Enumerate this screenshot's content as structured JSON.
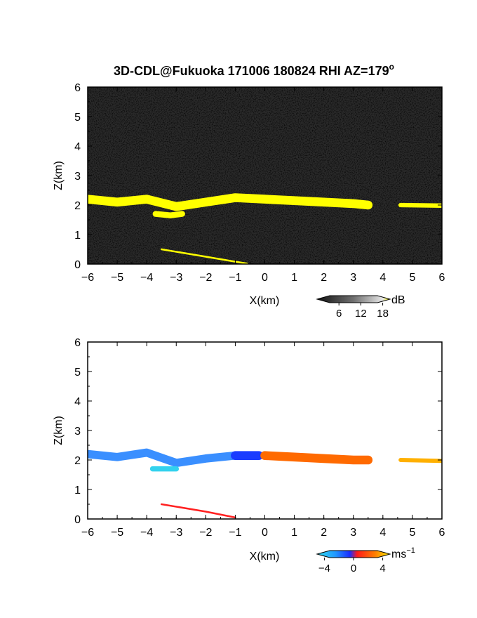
{
  "chart_data": [
    {
      "type": "heatmap",
      "title": "3D-CDL@Fukuoka 171006 180824 RHI AZ=179",
      "title_superscript": "o",
      "xlabel": "X(km)",
      "ylabel": "Z(km)",
      "xlim": [
        -6,
        6
      ],
      "ylim": [
        0,
        6
      ],
      "xticks": [
        -6,
        -5,
        -4,
        -3,
        -2,
        -1,
        0,
        1,
        2,
        3,
        4,
        5,
        6
      ],
      "yticks": [
        0,
        1,
        2,
        3,
        4,
        5,
        6
      ],
      "background": "dark gray noise",
      "colorbar": {
        "label": "dB",
        "ticks": [
          6,
          12,
          18
        ],
        "range": [
          0,
          20
        ]
      },
      "features": [
        {
          "name": "cloud layer",
          "x": [
            -6.0,
            -5.0,
            -4.0,
            -3.0,
            -2.0,
            -1.0,
            0.0,
            1.0,
            2.0,
            3.0,
            3.5
          ],
          "z": [
            2.2,
            2.1,
            2.2,
            1.95,
            2.1,
            2.25,
            2.2,
            2.15,
            2.1,
            2.05,
            2.0
          ],
          "thickness_km": 0.3,
          "color": "#ffff00"
        },
        {
          "name": "lower segment",
          "x": [
            -3.7,
            -3.2,
            -2.8
          ],
          "z": [
            1.7,
            1.65,
            1.7
          ],
          "thickness_km": 0.2,
          "color": "#ffff00"
        },
        {
          "name": "right segment",
          "x": [
            4.6,
            6.0
          ],
          "z": [
            2.0,
            1.98
          ],
          "thickness_km": 0.15,
          "color": "#ffff00"
        },
        {
          "name": "ground echo",
          "x": [
            -3.5,
            -2.0,
            -1.0,
            -0.6
          ],
          "z": [
            0.5,
            0.25,
            0.08,
            0.02
          ],
          "thickness_km": 0.06,
          "color": "#ffff00"
        }
      ]
    },
    {
      "type": "heatmap",
      "xlabel": "X(km)",
      "ylabel": "Z(km)",
      "xlim": [
        -6,
        6
      ],
      "ylim": [
        0,
        6
      ],
      "xticks": [
        -6,
        -5,
        -4,
        -3,
        -2,
        -1,
        0,
        1,
        2,
        3,
        4,
        5,
        6
      ],
      "yticks": [
        0,
        1,
        2,
        3,
        4,
        5,
        6
      ],
      "background": "white",
      "colorbar": {
        "label": "ms",
        "label_superscript": "−1",
        "ticks": [
          -4,
          0,
          4
        ],
        "tick_labels": [
          "−4",
          "0",
          "4"
        ],
        "range": [
          -5,
          5
        ]
      },
      "features": [
        {
          "name": "cloud layer west",
          "x": [
            -6.0,
            -5.0,
            -4.0,
            -3.0,
            -2.0,
            -1.0,
            -0.2
          ],
          "z": [
            2.2,
            2.1,
            2.25,
            1.9,
            2.05,
            2.15,
            2.15
          ],
          "thickness_km": 0.28,
          "velocity_ms": -2.8,
          "color": "#3a8fff"
        },
        {
          "name": "cloud layer center",
          "x": [
            -1.0,
            -0.2
          ],
          "z": [
            2.15,
            2.15
          ],
          "thickness_km": 0.3,
          "velocity_ms": -1.2,
          "color": "#1a3cff"
        },
        {
          "name": "cloud layer east",
          "x": [
            0.0,
            1.0,
            2.0,
            3.0,
            3.5
          ],
          "z": [
            2.15,
            2.1,
            2.05,
            2.0,
            2.0
          ],
          "thickness_km": 0.3,
          "velocity_ms": 2.2,
          "color": "#ff6a00"
        },
        {
          "name": "lower segment",
          "x": [
            -3.8,
            -3.0
          ],
          "z": [
            1.7,
            1.7
          ],
          "thickness_km": 0.18,
          "velocity_ms": -3.5,
          "color": "#33d2ee"
        },
        {
          "name": "right segment",
          "x": [
            4.6,
            6.0
          ],
          "z": [
            2.0,
            1.97
          ],
          "thickness_km": 0.14,
          "velocity_ms": 4.0,
          "color": "#ffb000"
        },
        {
          "name": "ground echo",
          "x": [
            -3.5,
            -2.0,
            -1.0
          ],
          "z": [
            0.5,
            0.25,
            0.05
          ],
          "thickness_km": 0.06,
          "velocity_ms": 0.5,
          "color": "#ff2020"
        }
      ]
    }
  ]
}
